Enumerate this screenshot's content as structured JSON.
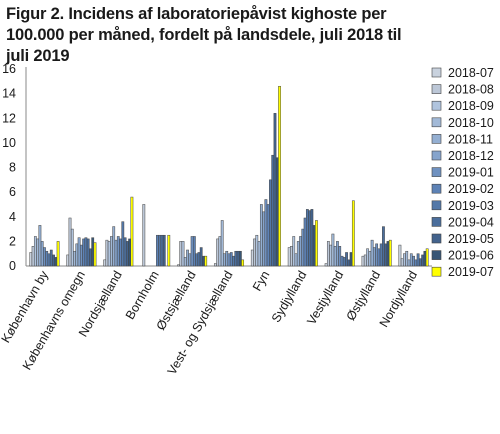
{
  "chart_data": {
    "type": "bar",
    "title": "Figur 2. Incidens af laboratoriepåvist kighoste per 100.000 per måned, fordelt på landsdele, juli 2018 til juli 2019",
    "xlabel": "",
    "ylabel": "",
    "ylim": [
      0,
      16
    ],
    "yticks": [
      0,
      2,
      4,
      6,
      8,
      10,
      12,
      14,
      16
    ],
    "grid": false,
    "legend_position": "right",
    "categories": [
      "København by",
      "Københavns omegn",
      "Nordsjælland",
      "Bornholm",
      "Østsjælland",
      "Vest- og Sydsjælland",
      "Fyn",
      "Sydjylland",
      "Vestjylland",
      "Østjylland",
      "Nordjylland"
    ],
    "series": [
      {
        "name": "2018-07",
        "color": "#c9d2de",
        "values": [
          1.1,
          0.9,
          0.5,
          0,
          0.1,
          0.2,
          1.3,
          1.5,
          0.2,
          0.8,
          1.7
        ]
      },
      {
        "name": "2018-08",
        "color": "#bcc7d7",
        "values": [
          1.6,
          3.9,
          2.1,
          5.0,
          2.0,
          2.2,
          2.2,
          1.6,
          2.0,
          0.9,
          0.6
        ]
      },
      {
        "name": "2018-09",
        "color": "#b0c4de",
        "values": [
          2.4,
          3.0,
          2.0,
          0,
          2.0,
          2.4,
          2.5,
          2.4,
          1.7,
          1.4,
          1.0
        ]
      },
      {
        "name": "2018-10",
        "color": "#a2b9d7",
        "values": [
          2.2,
          1.2,
          2.4,
          0,
          0.7,
          3.7,
          2.0,
          1.0,
          2.6,
          1.2,
          1.2
        ]
      },
      {
        "name": "2018-11",
        "color": "#94afd2",
        "values": [
          3.3,
          1.8,
          3.2,
          0,
          1.3,
          1.0,
          5.0,
          2.0,
          1.6,
          2.1,
          0.5
        ]
      },
      {
        "name": "2018-12",
        "color": "#86a4cc",
        "values": [
          2.0,
          2.3,
          2.1,
          0,
          1.0,
          1.2,
          4.4,
          2.4,
          2.0,
          1.5,
          1.0
        ]
      },
      {
        "name": "2019-01",
        "color": "#6f91c0",
        "values": [
          1.5,
          1.7,
          2.4,
          0,
          2.4,
          1.0,
          5.4,
          3.0,
          1.6,
          1.8,
          0.8
        ]
      },
      {
        "name": "2019-02",
        "color": "#5d82b6",
        "values": [
          1.2,
          2.2,
          2.2,
          2.5,
          2.4,
          1.1,
          5.0,
          3.9,
          0.8,
          1.4,
          0.5
        ]
      },
      {
        "name": "2019-03",
        "color": "#5378a8",
        "values": [
          1.0,
          2.3,
          3.6,
          2.5,
          1.0,
          0.8,
          7.0,
          4.6,
          0.7,
          1.8,
          1.0
        ]
      },
      {
        "name": "2019-04",
        "color": "#4b6e9c",
        "values": [
          1.3,
          2.2,
          2.3,
          2.5,
          1.1,
          1.2,
          9.0,
          4.5,
          1.1,
          3.2,
          0.6
        ]
      },
      {
        "name": "2019-05",
        "color": "#43638d",
        "values": [
          0.9,
          1.4,
          2.0,
          2.5,
          1.5,
          1.2,
          12.4,
          4.6,
          0.5,
          1.8,
          0.9
        ]
      },
      {
        "name": "2019-06",
        "color": "#385676",
        "values": [
          0.7,
          2.3,
          2.2,
          0,
          0.8,
          1.2,
          8.8,
          3.3,
          1.1,
          2.0,
          1.2
        ]
      },
      {
        "name": "2019-07",
        "color": "#ffff00",
        "values": [
          2.0,
          1.9,
          5.6,
          2.5,
          0.8,
          0.5,
          14.6,
          3.7,
          5.3,
          2.1,
          1.4
        ]
      }
    ]
  }
}
